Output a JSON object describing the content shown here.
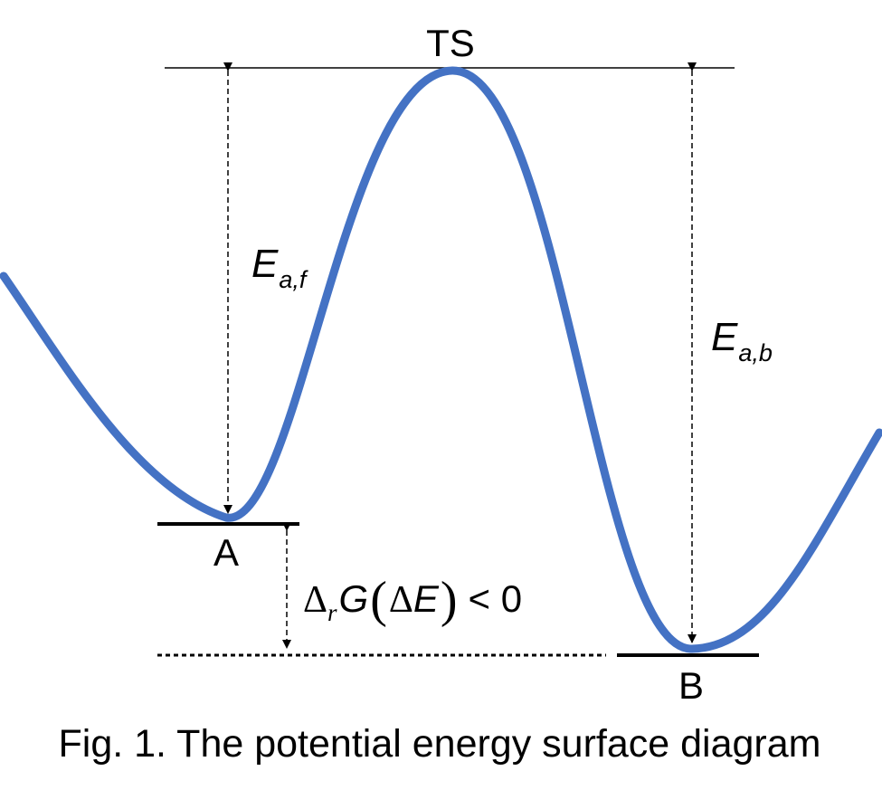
{
  "labels": {
    "ts": "TS",
    "reactant": "A",
    "product": "B",
    "forward_energy": {
      "main": "E",
      "sub": "a,f"
    },
    "backward_energy": {
      "main": "E",
      "sub": "a,b"
    },
    "reaction_energy": {
      "delta1": "Δ",
      "sub_r": "r",
      "g": "G",
      "lparen": "(",
      "delta2": "Δ",
      "e": "E",
      "rparen": ")",
      "comparison": "< 0"
    }
  },
  "caption": "Fig. 1. The potential energy surface diagram",
  "colors": {
    "curve": "#4472C4",
    "lines": "#000000",
    "text": "#000000"
  }
}
